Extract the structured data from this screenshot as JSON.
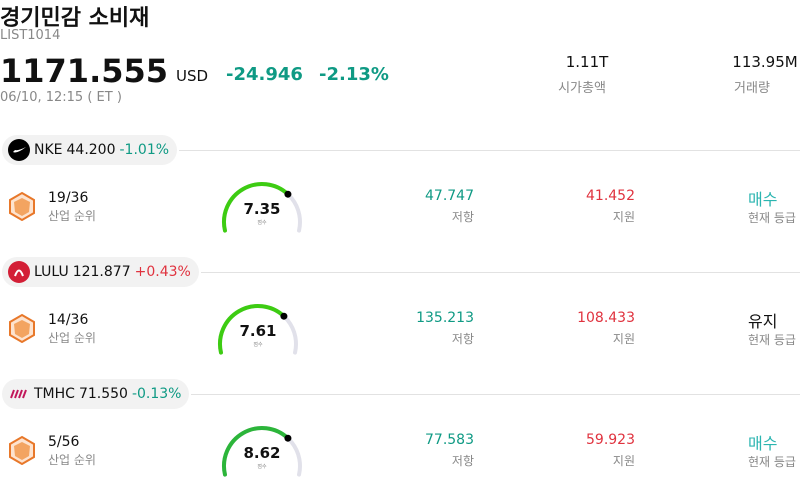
{
  "header": {
    "title": "경기민감 소비재",
    "code": "LIST1014",
    "price": "1171.555",
    "currency": "USD",
    "change": "-24.946",
    "change_pct": "-2.13%",
    "time": "06/10, 12:15 ( ET )"
  },
  "stats": [
    {
      "value": "1.11T",
      "label": "시가총액"
    },
    {
      "value": "113.95M",
      "label": "거래량"
    }
  ],
  "stocks": [
    {
      "ticker": "NKE",
      "price": "44.200",
      "change": "-1.01%",
      "rank": "19/36",
      "rank_label": "산업 순위",
      "score": "7.35",
      "score_label": "점수",
      "resistance": "47.747",
      "resistance_label": "저항",
      "support": "41.452",
      "support_label": "지원",
      "rating": "매수",
      "rating_label": "현재 등급"
    },
    {
      "ticker": "LULU",
      "price": "121.877",
      "change": "+0.43%",
      "rank": "14/36",
      "rank_label": "산업 순위",
      "score": "7.61",
      "score_label": "점수",
      "resistance": "135.213",
      "resistance_label": "저항",
      "support": "108.433",
      "support_label": "지원",
      "rating": "유지",
      "rating_label": "현재 등급"
    },
    {
      "ticker": "TMHC",
      "price": "71.550",
      "change": "-0.13%",
      "rank": "5/56",
      "rank_label": "산업 순위",
      "score": "8.62",
      "score_label": "점수",
      "resistance": "77.583",
      "resistance_label": "저항",
      "support": "59.923",
      "support_label": "지원",
      "rating": "매수",
      "rating_label": "현재 등급"
    }
  ]
}
